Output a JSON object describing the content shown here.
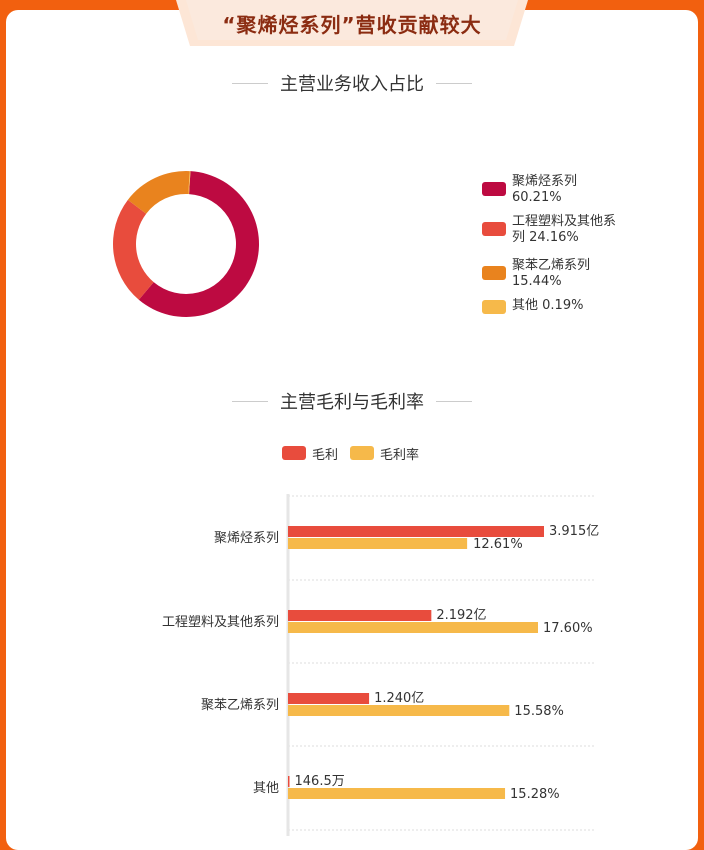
{
  "banner": {
    "title": "“聚烯烃系列”营收贡献较大"
  },
  "pie_section": {
    "title": "主营业务收入占比"
  },
  "bar_section": {
    "title": "主营毛利与毛利率"
  },
  "colors": {
    "background": "#f2600f",
    "crimson": "#bd0a41",
    "red": "#e84c3d",
    "orange": "#e9831e",
    "yellow": "#f6b94a"
  },
  "pie_legend": [
    {
      "label": "聚烯烃系列",
      "value_text": "60.21%",
      "color": "#bd0a41"
    },
    {
      "label": "工程塑料及其他系列",
      "value_text": "24.16%",
      "color": "#e84c3d"
    },
    {
      "label": "聚苯乙烯系列",
      "value_text": "15.44%",
      "color": "#e9831e"
    },
    {
      "label": "其他",
      "value_text": "0.19%",
      "color": "#f6b94a"
    }
  ],
  "chart_data": [
    {
      "type": "pie",
      "title": "主营业务收入占比",
      "categories": [
        "聚烯烃系列",
        "工程塑料及其他系列",
        "聚苯乙烯系列",
        "其他"
      ],
      "values": [
        60.21,
        24.16,
        15.44,
        0.19
      ],
      "unit": "%",
      "colors": [
        "#bd0a41",
        "#e84c3d",
        "#e9831e",
        "#f6b94a"
      ],
      "legend_position": "right"
    },
    {
      "type": "bar",
      "orientation": "horizontal",
      "title": "主营毛利与毛利率",
      "categories": [
        "聚烯烃系列",
        "工程塑料及其他系列",
        "聚苯乙烯系列",
        "其他"
      ],
      "series": [
        {
          "name": "毛利",
          "values": [
            3.915,
            2.192,
            1.24,
            0.01465
          ],
          "unit": "亿元",
          "labels": [
            "3.915亿",
            "2.192亿",
            "1.240亿",
            "146.5万"
          ],
          "color": "#e84c3d"
        },
        {
          "name": "毛利率",
          "values": [
            12.61,
            17.6,
            15.58,
            15.28
          ],
          "unit": "%",
          "labels": [
            "12.61%",
            "17.60%",
            "15.58%",
            "15.28%"
          ],
          "color": "#f6b94a"
        }
      ],
      "legend_position": "top",
      "grid": true
    }
  ]
}
